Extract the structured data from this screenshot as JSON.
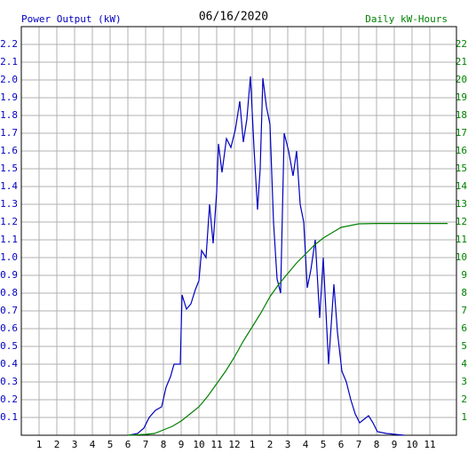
{
  "chart_data": {
    "type": "line",
    "title": "06/16/2020",
    "xlim": [
      0,
      24.5
    ],
    "ylim": [
      0,
      2.3
    ],
    "y2lim": [
      0,
      23
    ],
    "grid": true,
    "xticks": [
      {
        "value": 1,
        "label": "1"
      },
      {
        "value": 2,
        "label": "2"
      },
      {
        "value": 3,
        "label": "3"
      },
      {
        "value": 4,
        "label": "4"
      },
      {
        "value": 5,
        "label": "5"
      },
      {
        "value": 6,
        "label": "6"
      },
      {
        "value": 7,
        "label": "7"
      },
      {
        "value": 8,
        "label": "8"
      },
      {
        "value": 9,
        "label": "9"
      },
      {
        "value": 10,
        "label": "10"
      },
      {
        "value": 11,
        "label": "11"
      },
      {
        "value": 12,
        "label": "12"
      },
      {
        "value": 13,
        "label": "1"
      },
      {
        "value": 14,
        "label": "2"
      },
      {
        "value": 15,
        "label": "3"
      },
      {
        "value": 16,
        "label": "4"
      },
      {
        "value": 17,
        "label": "5"
      },
      {
        "value": 18,
        "label": "6"
      },
      {
        "value": 19,
        "label": "7"
      },
      {
        "value": 20,
        "label": "8"
      },
      {
        "value": 21,
        "label": "9"
      },
      {
        "value": 22,
        "label": "10"
      },
      {
        "value": 23,
        "label": "11"
      }
    ],
    "yticks": [
      0.1,
      0.2,
      0.3,
      0.4,
      0.5,
      0.6,
      0.7,
      0.8,
      0.9,
      {
        "value": 1,
        "label": "1.0"
      },
      1.1,
      1.2,
      1.3,
      1.4,
      1.5,
      1.6,
      1.7,
      1.8,
      1.9,
      {
        "value": 2,
        "label": "2.0"
      },
      2.1,
      2.2
    ],
    "y2ticks": [
      1,
      2,
      3,
      4,
      5,
      6,
      7,
      8,
      9,
      10,
      11,
      12,
      13,
      14,
      15,
      16,
      17,
      18,
      19,
      20,
      21,
      22
    ],
    "series": [
      {
        "name": "Power Output (kW)",
        "color": "#0000c0",
        "axis": "y",
        "x": [
          6.05,
          6.55,
          6.9,
          7.2,
          7.55,
          7.9,
          8.15,
          8.4,
          8.6,
          8.95,
          9.05,
          9.3,
          9.55,
          9.8,
          10.0,
          10.15,
          10.4,
          10.6,
          10.8,
          11.0,
          11.1,
          11.3,
          11.55,
          11.8,
          12.05,
          12.3,
          12.5,
          12.7,
          12.9,
          13.1,
          13.3,
          13.45,
          13.6,
          13.8,
          14.0,
          14.2,
          14.4,
          14.6,
          14.8,
          15.05,
          15.3,
          15.5,
          15.7,
          15.9,
          16.1,
          16.3,
          16.55,
          16.8,
          17.0,
          17.3,
          17.6,
          17.8,
          18.05,
          18.3,
          18.55,
          18.8,
          19.05,
          19.3,
          19.55,
          19.8,
          20.05,
          20.55,
          21.55
        ],
        "values": [
          0,
          0.01,
          0.04,
          0.1,
          0.14,
          0.16,
          0.27,
          0.33,
          0.4,
          0.4,
          0.79,
          0.71,
          0.74,
          0.82,
          0.87,
          1.04,
          1.0,
          1.3,
          1.08,
          1.37,
          1.64,
          1.48,
          1.67,
          1.62,
          1.72,
          1.88,
          1.65,
          1.78,
          2.02,
          1.62,
          1.27,
          1.5,
          2.01,
          1.85,
          1.75,
          1.2,
          0.88,
          0.8,
          1.7,
          1.6,
          1.46,
          1.6,
          1.3,
          1.2,
          0.83,
          0.93,
          1.1,
          0.66,
          1.0,
          0.4,
          0.85,
          0.58,
          0.36,
          0.3,
          0.2,
          0.12,
          0.07,
          0.09,
          0.11,
          0.07,
          0.02,
          0.01,
          0
        ]
      },
      {
        "name": "Daily kW-Hours",
        "color": "#008000",
        "axis": "y2",
        "x": [
          6,
          7,
          7.5,
          8,
          8.5,
          9,
          9.5,
          10,
          10.5,
          11,
          11.5,
          12,
          12.5,
          13,
          13.5,
          14,
          14.5,
          15,
          15.5,
          16,
          16.5,
          17,
          17.5,
          18,
          18.5,
          19,
          20,
          24
        ],
        "values": [
          0,
          0.05,
          0.1,
          0.3,
          0.5,
          0.8,
          1.2,
          1.6,
          2.2,
          2.9,
          3.6,
          4.4,
          5.3,
          6.1,
          6.9,
          7.8,
          8.5,
          9.1,
          9.7,
          10.2,
          10.7,
          11.1,
          11.4,
          11.7,
          11.8,
          11.9,
          11.92,
          11.92
        ]
      }
    ]
  }
}
